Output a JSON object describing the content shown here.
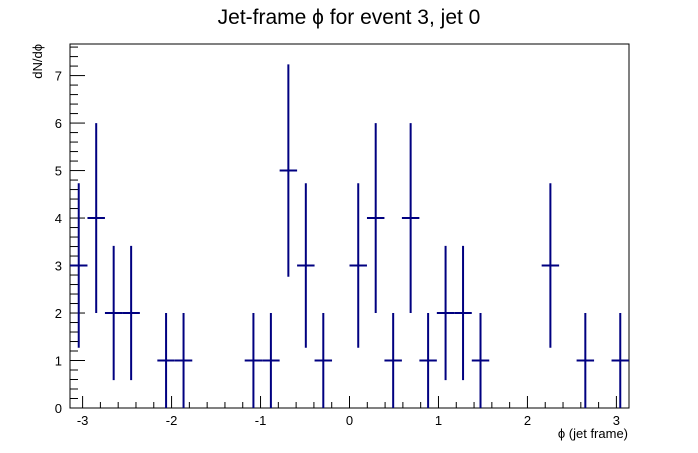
{
  "chart_data": {
    "type": "scatter",
    "title": "Jet-frame   ϕ for event 3, jet 0",
    "xlabel": "ϕ (jet frame)",
    "ylabel": "dN/dϕ",
    "xlim": [
      -3.14159,
      3.14159
    ],
    "ylim": [
      0,
      7.665
    ],
    "x_ticks": [
      -3,
      -2,
      -1,
      0,
      1,
      2,
      3
    ],
    "y_ticks": [
      0,
      1,
      2,
      3,
      4,
      5,
      6,
      7
    ],
    "bin_count": 32,
    "series": [
      {
        "color": "#000080",
        "points": [
          {
            "x": -3.0434,
            "y": 3
          },
          {
            "x": -2.8471,
            "y": 4
          },
          {
            "x": -2.6507,
            "y": 2
          },
          {
            "x": -2.4544,
            "y": 2
          },
          {
            "x": -2.0617,
            "y": 1
          },
          {
            "x": -1.8653,
            "y": 1
          },
          {
            "x": -1.0799,
            "y": 1
          },
          {
            "x": -0.8836,
            "y": 1
          },
          {
            "x": -0.6872,
            "y": 5
          },
          {
            "x": -0.4909,
            "y": 3
          },
          {
            "x": -0.2945,
            "y": 1
          },
          {
            "x": 0.0982,
            "y": 3
          },
          {
            "x": 0.2945,
            "y": 4
          },
          {
            "x": 0.4909,
            "y": 1
          },
          {
            "x": 0.6872,
            "y": 4
          },
          {
            "x": 0.8836,
            "y": 1
          },
          {
            "x": 1.0799,
            "y": 2
          },
          {
            "x": 1.2763,
            "y": 2
          },
          {
            "x": 1.4726,
            "y": 1
          },
          {
            "x": 2.258,
            "y": 3
          },
          {
            "x": 2.6507,
            "y": 1
          },
          {
            "x": 3.0434,
            "y": 1
          }
        ]
      }
    ]
  }
}
